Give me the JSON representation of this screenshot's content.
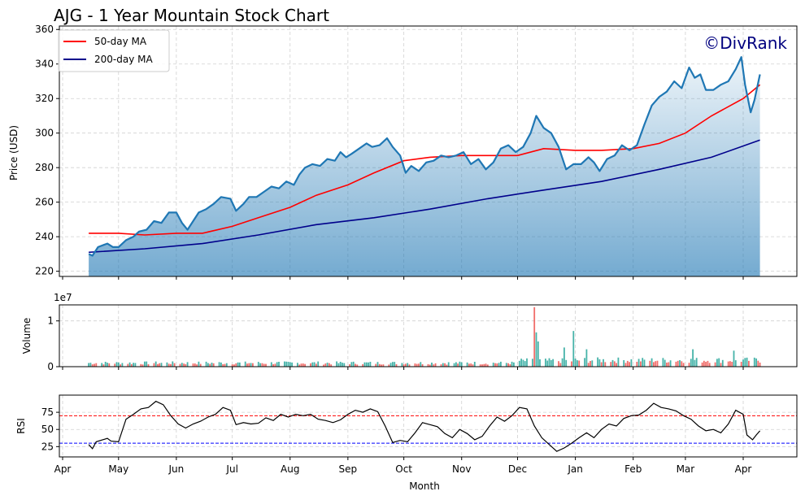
{
  "title": "AJG - 1 Year Mountain Stock Chart",
  "watermark": "©DivRank",
  "xlabel": "Month",
  "price_panel": {
    "ylabel": "Price (USD)",
    "yticks": [
      "220",
      "240",
      "260",
      "280",
      "300",
      "320",
      "340",
      "360"
    ],
    "legend": [
      {
        "label": "50-day MA",
        "color": "#ff0000"
      },
      {
        "label": "200-day MA",
        "color": "#00008b"
      }
    ]
  },
  "volume_panel": {
    "ylabel": "Volume",
    "exponent": "1e7",
    "yticks": [
      "0",
      "1"
    ]
  },
  "rsi_panel": {
    "ylabel": "RSI",
    "yticks": [
      "25",
      "50",
      "75"
    ],
    "overbought": 70,
    "oversold": 30
  },
  "xticks": [
    "Apr",
    "May",
    "Jun",
    "Jul",
    "Aug",
    "Sep",
    "Oct",
    "Nov",
    "Dec",
    "Jan",
    "Feb",
    "Mar",
    "Apr"
  ],
  "colors": {
    "price_line": "#1f77b4",
    "ma50": "#ff0000",
    "ma200": "#00008b",
    "vol_up": "#26a69a",
    "vol_down": "#ef5350",
    "watermark": "#00007f"
  },
  "chart_data": [
    {
      "type": "area",
      "title": "AJG - 1 Year Mountain Stock Chart",
      "ylabel": "Price (USD)",
      "ylim": [
        217,
        362
      ],
      "x_range": [
        "2024-04-15",
        "2025-04-10"
      ],
      "series": [
        {
          "name": "Price",
          "points": [
            [
              "2024-04-15",
              230
            ],
            [
              "2024-04-17",
              229
            ],
            [
              "2024-04-20",
              234
            ],
            [
              "2024-04-25",
              236
            ],
            [
              "2024-04-28",
              234
            ],
            [
              "2024-05-01",
              234
            ],
            [
              "2024-05-05",
              238
            ],
            [
              "2024-05-09",
              240
            ],
            [
              "2024-05-12",
              243
            ],
            [
              "2024-05-16",
              244
            ],
            [
              "2024-05-20",
              249
            ],
            [
              "2024-05-24",
              248
            ],
            [
              "2024-05-28",
              254
            ],
            [
              "2024-06-01",
              254
            ],
            [
              "2024-06-04",
              248
            ],
            [
              "2024-06-07",
              244
            ],
            [
              "2024-06-10",
              249
            ],
            [
              "2024-06-13",
              254
            ],
            [
              "2024-06-17",
              256
            ],
            [
              "2024-06-21",
              259
            ],
            [
              "2024-06-25",
              263
            ],
            [
              "2024-06-30",
              262
            ],
            [
              "2024-07-03",
              255
            ],
            [
              "2024-07-07",
              259
            ],
            [
              "2024-07-10",
              263
            ],
            [
              "2024-07-14",
              263
            ],
            [
              "2024-07-18",
              266
            ],
            [
              "2024-07-22",
              269
            ],
            [
              "2024-07-26",
              268
            ],
            [
              "2024-07-30",
              272
            ],
            [
              "2024-08-03",
              270
            ],
            [
              "2024-08-06",
              276
            ],
            [
              "2024-08-09",
              280
            ],
            [
              "2024-08-13",
              282
            ],
            [
              "2024-08-17",
              281
            ],
            [
              "2024-08-21",
              285
            ],
            [
              "2024-08-25",
              284
            ],
            [
              "2024-08-28",
              289
            ],
            [
              "2024-08-31",
              286
            ],
            [
              "2024-09-03",
              288
            ],
            [
              "2024-09-07",
              291
            ],
            [
              "2024-09-11",
              294
            ],
            [
              "2024-09-14",
              292
            ],
            [
              "2024-09-18",
              293
            ],
            [
              "2024-09-22",
              297
            ],
            [
              "2024-09-25",
              292
            ],
            [
              "2024-09-29",
              287
            ],
            [
              "2024-10-02",
              277
            ],
            [
              "2024-10-05",
              281
            ],
            [
              "2024-10-09",
              278
            ],
            [
              "2024-10-13",
              283
            ],
            [
              "2024-10-17",
              284
            ],
            [
              "2024-10-21",
              287
            ],
            [
              "2024-10-25",
              286
            ],
            [
              "2024-10-29",
              287
            ],
            [
              "2024-11-02",
              289
            ],
            [
              "2024-11-06",
              282
            ],
            [
              "2024-11-10",
              285
            ],
            [
              "2024-11-14",
              279
            ],
            [
              "2024-11-18",
              283
            ],
            [
              "2024-11-22",
              291
            ],
            [
              "2024-11-26",
              293
            ],
            [
              "2024-11-30",
              289
            ],
            [
              "2024-12-04",
              292
            ],
            [
              "2024-12-08",
              300
            ],
            [
              "2024-12-11",
              310
            ],
            [
              "2024-12-15",
              303
            ],
            [
              "2024-12-19",
              300
            ],
            [
              "2024-12-23",
              292
            ],
            [
              "2024-12-27",
              279
            ],
            [
              "2024-12-31",
              282
            ],
            [
              "2025-01-04",
              282
            ],
            [
              "2025-01-08",
              286
            ],
            [
              "2025-01-11",
              283
            ],
            [
              "2025-01-14",
              278
            ],
            [
              "2025-01-18",
              285
            ],
            [
              "2025-01-22",
              287
            ],
            [
              "2025-01-26",
              293
            ],
            [
              "2025-01-30",
              290
            ],
            [
              "2025-02-03",
              293
            ],
            [
              "2025-02-07",
              305
            ],
            [
              "2025-02-11",
              316
            ],
            [
              "2025-02-15",
              321
            ],
            [
              "2025-02-19",
              324
            ],
            [
              "2025-02-23",
              330
            ],
            [
              "2025-02-27",
              326
            ],
            [
              "2025-03-03",
              338
            ],
            [
              "2025-03-06",
              332
            ],
            [
              "2025-03-09",
              334
            ],
            [
              "2025-03-12",
              325
            ],
            [
              "2025-03-16",
              325
            ],
            [
              "2025-03-20",
              328
            ],
            [
              "2025-03-24",
              330
            ],
            [
              "2025-03-28",
              337
            ],
            [
              "2025-03-31",
              344
            ],
            [
              "2025-04-02",
              328
            ],
            [
              "2025-04-05",
              312
            ],
            [
              "2025-04-07",
              319
            ],
            [
              "2025-04-10",
              334
            ]
          ]
        },
        {
          "name": "50-day MA",
          "points": [
            [
              "2024-04-15",
              242
            ],
            [
              "2024-05-01",
              242
            ],
            [
              "2024-05-15",
              241
            ],
            [
              "2024-06-01",
              242
            ],
            [
              "2024-06-15",
              242
            ],
            [
              "2024-07-01",
              246
            ],
            [
              "2024-07-15",
              251
            ],
            [
              "2024-08-01",
              257
            ],
            [
              "2024-08-15",
              264
            ],
            [
              "2024-09-01",
              270
            ],
            [
              "2024-09-15",
              277
            ],
            [
              "2024-10-01",
              284
            ],
            [
              "2024-10-15",
              286
            ],
            [
              "2024-11-01",
              287
            ],
            [
              "2024-11-15",
              287
            ],
            [
              "2024-12-01",
              287
            ],
            [
              "2024-12-15",
              291
            ],
            [
              "2025-01-01",
              290
            ],
            [
              "2025-01-15",
              290
            ],
            [
              "2025-02-01",
              291
            ],
            [
              "2025-02-15",
              294
            ],
            [
              "2025-03-01",
              300
            ],
            [
              "2025-03-15",
              310
            ],
            [
              "2025-04-01",
              320
            ],
            [
              "2025-04-10",
              328
            ]
          ]
        },
        {
          "name": "200-day MA",
          "points": [
            [
              "2024-04-15",
              231
            ],
            [
              "2024-05-15",
              233
            ],
            [
              "2024-06-15",
              236
            ],
            [
              "2024-07-15",
              241
            ],
            [
              "2024-08-15",
              247
            ],
            [
              "2024-09-15",
              251
            ],
            [
              "2024-10-15",
              256
            ],
            [
              "2024-11-15",
              262
            ],
            [
              "2024-12-15",
              267
            ],
            [
              "2025-01-15",
              272
            ],
            [
              "2025-02-15",
              279
            ],
            [
              "2025-03-15",
              286
            ],
            [
              "2025-04-10",
              296
            ]
          ]
        }
      ]
    },
    {
      "type": "bar",
      "ylabel": "Volume",
      "unit_multiplier": 10000000,
      "ylim": [
        0,
        1.35
      ],
      "note_values": "in units of 1e7 shares",
      "spikes": [
        [
          "2024-12-10",
          1.3
        ],
        [
          "2024-12-11",
          0.75
        ],
        [
          "2024-12-12",
          0.55
        ],
        [
          "2024-12-26",
          0.42
        ],
        [
          "2024-12-31",
          0.78
        ],
        [
          "2025-01-07",
          0.38
        ],
        [
          "2025-03-05",
          0.38
        ],
        [
          "2025-03-27",
          0.35
        ]
      ],
      "baseline": 0.08
    },
    {
      "type": "line",
      "ylabel": "RSI",
      "ylim": [
        10,
        100
      ],
      "hlines": [
        70,
        30
      ],
      "series": [
        {
          "name": "RSI",
          "points": [
            [
              "2024-04-15",
              28
            ],
            [
              "2024-04-17",
              22
            ],
            [
              "2024-04-19",
              32
            ],
            [
              "2024-04-25",
              37
            ],
            [
              "2024-04-27",
              33
            ],
            [
              "2024-05-01",
              32
            ],
            [
              "2024-05-05",
              65
            ],
            [
              "2024-05-09",
              72
            ],
            [
              "2024-05-13",
              80
            ],
            [
              "2024-05-17",
              82
            ],
            [
              "2024-05-21",
              91
            ],
            [
              "2024-05-25",
              86
            ],
            [
              "2024-05-29",
              70
            ],
            [
              "2024-06-02",
              58
            ],
            [
              "2024-06-06",
              52
            ],
            [
              "2024-06-10",
              58
            ],
            [
              "2024-06-14",
              62
            ],
            [
              "2024-06-18",
              68
            ],
            [
              "2024-06-22",
              72
            ],
            [
              "2024-06-26",
              82
            ],
            [
              "2024-06-30",
              78
            ],
            [
              "2024-07-03",
              57
            ],
            [
              "2024-07-07",
              60
            ],
            [
              "2024-07-11",
              58
            ],
            [
              "2024-07-15",
              59
            ],
            [
              "2024-07-19",
              67
            ],
            [
              "2024-07-23",
              63
            ],
            [
              "2024-07-27",
              72
            ],
            [
              "2024-07-31",
              68
            ],
            [
              "2024-08-04",
              72
            ],
            [
              "2024-08-08",
              70
            ],
            [
              "2024-08-12",
              72
            ],
            [
              "2024-08-16",
              65
            ],
            [
              "2024-08-20",
              63
            ],
            [
              "2024-08-24",
              60
            ],
            [
              "2024-08-28",
              64
            ],
            [
              "2024-09-01",
              72
            ],
            [
              "2024-09-05",
              78
            ],
            [
              "2024-09-09",
              75
            ],
            [
              "2024-09-13",
              80
            ],
            [
              "2024-09-17",
              76
            ],
            [
              "2024-09-21",
              55
            ],
            [
              "2024-09-25",
              31
            ],
            [
              "2024-09-29",
              34
            ],
            [
              "2024-10-03",
              32
            ],
            [
              "2024-10-07",
              45
            ],
            [
              "2024-10-11",
              60
            ],
            [
              "2024-10-15",
              57
            ],
            [
              "2024-10-19",
              54
            ],
            [
              "2024-10-23",
              44
            ],
            [
              "2024-10-27",
              38
            ],
            [
              "2024-10-31",
              50
            ],
            [
              "2024-11-04",
              44
            ],
            [
              "2024-11-08",
              35
            ],
            [
              "2024-11-12",
              40
            ],
            [
              "2024-11-16",
              55
            ],
            [
              "2024-11-20",
              68
            ],
            [
              "2024-11-24",
              62
            ],
            [
              "2024-11-28",
              70
            ],
            [
              "2024-12-02",
              82
            ],
            [
              "2024-12-06",
              80
            ],
            [
              "2024-12-10",
              55
            ],
            [
              "2024-12-14",
              38
            ],
            [
              "2024-12-18",
              28
            ],
            [
              "2024-12-22",
              18
            ],
            [
              "2024-12-26",
              23
            ],
            [
              "2024-12-30",
              30
            ],
            [
              "2025-01-03",
              38
            ],
            [
              "2025-01-07",
              45
            ],
            [
              "2025-01-11",
              38
            ],
            [
              "2025-01-15",
              50
            ],
            [
              "2025-01-19",
              58
            ],
            [
              "2025-01-23",
              55
            ],
            [
              "2025-01-27",
              66
            ],
            [
              "2025-01-31",
              70
            ],
            [
              "2025-02-04",
              71
            ],
            [
              "2025-02-08",
              78
            ],
            [
              "2025-02-12",
              88
            ],
            [
              "2025-02-16",
              82
            ],
            [
              "2025-02-20",
              80
            ],
            [
              "2025-02-24",
              77
            ],
            [
              "2025-02-28",
              70
            ],
            [
              "2025-03-04",
              65
            ],
            [
              "2025-03-08",
              55
            ],
            [
              "2025-03-12",
              48
            ],
            [
              "2025-03-16",
              50
            ],
            [
              "2025-03-20",
              45
            ],
            [
              "2025-03-24",
              58
            ],
            [
              "2025-03-28",
              78
            ],
            [
              "2025-04-01",
              72
            ],
            [
              "2025-04-03",
              42
            ],
            [
              "2025-04-06",
              35
            ],
            [
              "2025-04-08",
              42
            ],
            [
              "2025-04-10",
              48
            ]
          ]
        }
      ]
    }
  ]
}
